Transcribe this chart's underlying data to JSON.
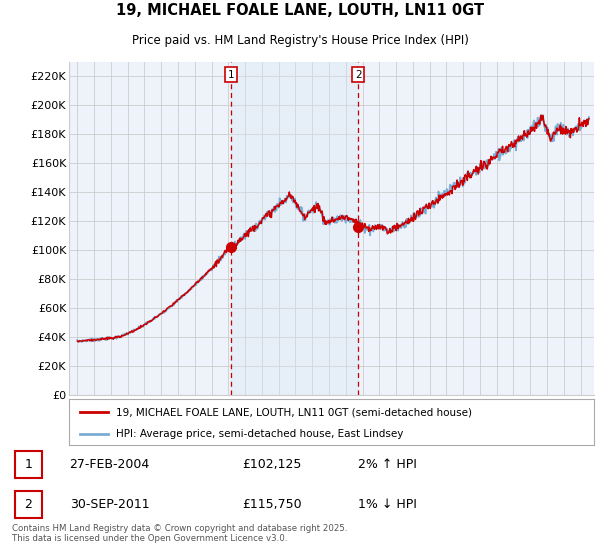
{
  "title": "19, MICHAEL FOALE LANE, LOUTH, LN11 0GT",
  "subtitle": "Price paid vs. HM Land Registry's House Price Index (HPI)",
  "ylabel_ticks": [
    "£0",
    "£20K",
    "£40K",
    "£60K",
    "£80K",
    "£100K",
    "£120K",
    "£140K",
    "£160K",
    "£180K",
    "£200K",
    "£220K"
  ],
  "ytick_values": [
    0,
    20000,
    40000,
    60000,
    80000,
    100000,
    120000,
    140000,
    160000,
    180000,
    200000,
    220000
  ],
  "ylim": [
    0,
    230000
  ],
  "xlim_start": 1994.5,
  "xlim_end": 2025.8,
  "purchase1_x": 2004.15,
  "purchase1_y": 102125,
  "purchase2_x": 2011.75,
  "purchase2_y": 115750,
  "vline1_x": 2004.15,
  "vline2_x": 2011.75,
  "legend_label_red": "19, MICHAEL FOALE LANE, LOUTH, LN11 0GT (semi-detached house)",
  "legend_label_blue": "HPI: Average price, semi-detached house, East Lindsey",
  "annotation1_label": "1",
  "annotation1_date": "27-FEB-2004",
  "annotation1_price": "£102,125",
  "annotation1_hpi": "2% ↑ HPI",
  "annotation2_label": "2",
  "annotation2_date": "30-SEP-2011",
  "annotation2_price": "£115,750",
  "annotation2_hpi": "1% ↓ HPI",
  "footer": "Contains HM Land Registry data © Crown copyright and database right 2025.\nThis data is licensed under the Open Government Licence v3.0.",
  "red_color": "#cc0000",
  "blue_color": "#7aadd4",
  "bg_color": "#ffffff",
  "plot_bg_color": "#eef2fa",
  "shade_color": "#d8e8f5",
  "grid_color": "#cccccc",
  "vline_color": "#cc0000"
}
